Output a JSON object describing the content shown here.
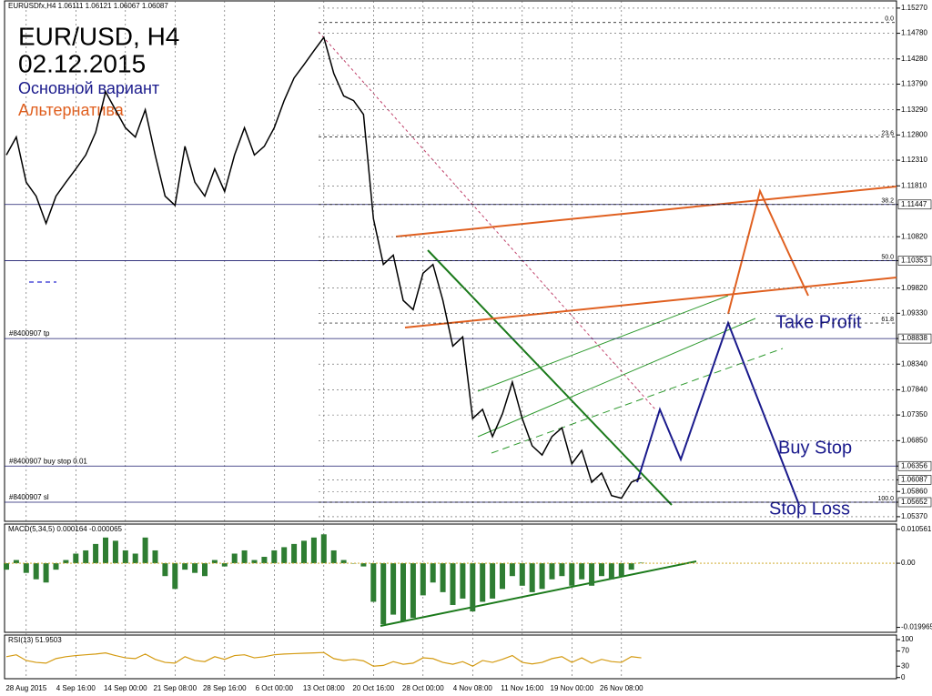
{
  "chart_data": [
    {
      "type": "line",
      "header": "EURUSDfx,H4  1.06111 1.06121 1.06067 1.06087",
      "title": "EUR/USD, H4",
      "subtitle": "02.12.2015",
      "main_scenario": {
        "text": "Основной вариант",
        "color": "#1a1a8c"
      },
      "alt_scenario": {
        "text": "Альтернатива",
        "color": "#e06020"
      },
      "annotations": [
        "Take Profit",
        "Buy Stop",
        "Stop Loss"
      ],
      "categories": [
        null,
        null,
        "28 Aug 2015",
        null,
        null,
        null,
        null,
        "4 Sep 16:00",
        null,
        null,
        null,
        null,
        "14 Sep 00:00",
        null,
        null,
        null,
        null,
        "21 Sep 08:00",
        null,
        null,
        null,
        null,
        "28 Sep 16:00",
        null,
        null,
        null,
        null,
        "6 Oct 00:00",
        null,
        null,
        null,
        null,
        "13 Oct 08:00",
        null,
        null,
        null,
        null,
        "20 Oct 16:00",
        null,
        null,
        null,
        null,
        "28 Oct 00:00",
        null,
        null,
        null,
        null,
        "4 Nov 08:00",
        null,
        null,
        null,
        null,
        "11 Nov 16:00",
        null,
        null,
        null,
        null,
        "19 Nov 00:00",
        null,
        null,
        null,
        null,
        "26 Nov 08:00",
        null,
        null
      ],
      "values": [
        1.1241,
        1.1276,
        1.1188,
        1.1161,
        1.1108,
        1.1161,
        1.1188,
        1.1214,
        1.1241,
        1.1285,
        1.1364,
        1.1329,
        1.1294,
        1.1276,
        1.1329,
        1.1241,
        1.1161,
        1.1143,
        1.1258,
        1.1188,
        1.1161,
        1.1214,
        1.117,
        1.1241,
        1.1294,
        1.1241,
        1.1258,
        1.1294,
        1.1347,
        1.1391,
        1.1417,
        1.1444,
        1.147,
        1.14,
        1.1356,
        1.1347,
        1.132,
        1.1117,
        1.1028,
        1.1046,
        1.0958,
        1.094,
        1.1011,
        1.1028,
        1.0958,
        1.0869,
        1.0887,
        1.0728,
        1.0746,
        1.0693,
        1.0737,
        1.0799,
        1.0728,
        1.0675,
        1.0657,
        1.0693,
        1.071,
        1.064,
        1.0666,
        1.0604,
        1.0622,
        1.0578,
        1.0573,
        1.0604,
        1.0613
      ],
      "color": "#000000",
      "ylim": [
        1.0528,
        1.1541
      ],
      "yticks": [
        {
          "value": 1.1527,
          "label": "1.15270"
        },
        {
          "value": 1.1478,
          "label": "1.14780"
        },
        {
          "value": 1.1428,
          "label": "1.14280"
        },
        {
          "value": 1.1379,
          "label": "1.13790"
        },
        {
          "value": 1.1329,
          "label": "1.13290"
        },
        {
          "value": 1.128,
          "label": "1.12800"
        },
        {
          "value": 1.1231,
          "label": "1.12310"
        },
        {
          "value": 1.1181,
          "label": "1.11810"
        },
        {
          "value": 1.11447,
          "label": "1.11447"
        },
        {
          "value": 1.1082,
          "label": "1.10820"
        },
        {
          "value": 1.10353,
          "label": "1.10353"
        },
        {
          "value": 1.0982,
          "label": "1.09820"
        },
        {
          "value": 1.0933,
          "label": "1.09330"
        },
        {
          "value": 1.08838,
          "label": "1.08838"
        },
        {
          "value": 1.0834,
          "label": "1.08340"
        },
        {
          "value": 1.0784,
          "label": "1.07840"
        },
        {
          "value": 1.0735,
          "label": "1.07350"
        },
        {
          "value": 1.0685,
          "label": "1.06850"
        },
        {
          "value": 1.06356,
          "label": "1.06356"
        },
        {
          "value": 1.06087,
          "label": "1.06087"
        },
        {
          "value": 1.0586,
          "label": "1.05860"
        },
        {
          "value": 1.05652,
          "label": "1.05652"
        },
        {
          "value": 1.0537,
          "label": "1.05370"
        }
      ],
      "grid": true,
      "hlines": [
        1.11447,
        1.10353
      ],
      "levels": [
        {
          "value": 1.08838,
          "label": "#8400907 tp"
        },
        {
          "value": 1.06356,
          "label": "#8400907 buy stop 0.01"
        },
        {
          "value": 1.05652,
          "label": "#8400907 sl"
        }
      ],
      "fibo": [
        {
          "value": 1.1499,
          "label": "0.0"
        },
        {
          "value": 1.1276,
          "label": "23.6"
        },
        {
          "value": 1.11447,
          "label": "38.2"
        },
        {
          "value": 1.10353,
          "label": "50.0"
        },
        {
          "value": 1.0914,
          "label": "61.8"
        },
        {
          "value": 1.05652,
          "label": "100.0"
        }
      ]
    },
    {
      "type": "bar",
      "title": "MACD(5,34,5) 0.000164 -0.000065",
      "values": [
        -0.002,
        0.001,
        -0.003,
        -0.005,
        -0.006,
        -0.002,
        0.001,
        0.003,
        0.004,
        0.006,
        0.008,
        0.007,
        0.004,
        0.003,
        0.008,
        0.004,
        -0.004,
        -0.008,
        -0.002,
        -0.003,
        -0.004,
        0.001,
        -0.001,
        0.003,
        0.004,
        0.001,
        0.002,
        0.004,
        0.005,
        0.006,
        0.007,
        0.008,
        0.009,
        0.004,
        0.001,
        0,
        -0.001,
        -0.012,
        -0.019,
        -0.016,
        -0.018,
        -0.017,
        -0.01,
        -0.006,
        -0.009,
        -0.013,
        -0.011,
        -0.015,
        -0.012,
        -0.011,
        -0.008,
        -0.004,
        -0.007,
        -0.009,
        -0.008,
        -0.005,
        -0.004,
        -0.007,
        -0.005,
        -0.007,
        -0.004,
        -0.005,
        -0.004,
        -0.002,
        0.0002
      ],
      "color": "#2e7d32",
      "ylim": [
        -0.0215,
        0.0122
      ],
      "yticks": [
        {
          "value": 0.010561,
          "label": "0.010561"
        },
        {
          "value": 0,
          "label": "0.00"
        },
        {
          "value": -0.019965,
          "label": "-0.019965"
        }
      ]
    },
    {
      "type": "line",
      "title": "RSI(13) 51.9503",
      "values": [
        55,
        60,
        45,
        40,
        38,
        50,
        55,
        58,
        60,
        62,
        65,
        58,
        52,
        50,
        62,
        48,
        40,
        38,
        55,
        45,
        42,
        55,
        48,
        58,
        60,
        52,
        55,
        60,
        62,
        63,
        64,
        65,
        66,
        50,
        45,
        48,
        44,
        30,
        32,
        42,
        35,
        38,
        52,
        50,
        40,
        35,
        42,
        30,
        45,
        40,
        48,
        58,
        40,
        36,
        40,
        50,
        55,
        40,
        52,
        38,
        48,
        42,
        40,
        55,
        52
      ],
      "color": "#d49a10",
      "ylim": [
        -3,
        112
      ],
      "yticks": [
        100,
        70,
        30,
        0
      ]
    }
  ]
}
